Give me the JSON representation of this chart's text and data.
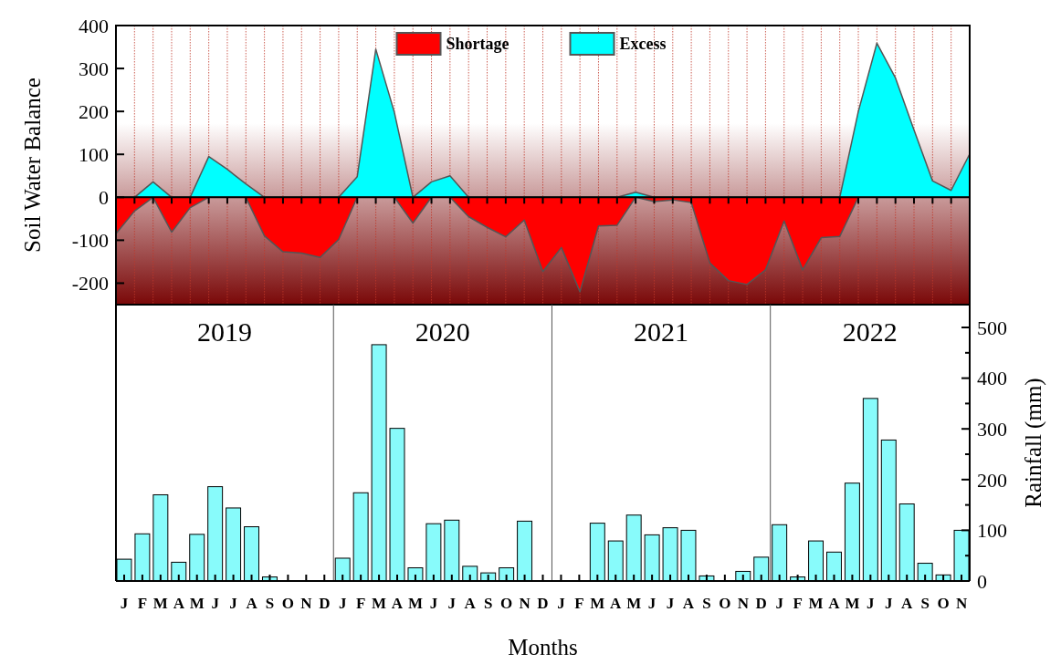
{
  "chart_data": [
    {
      "type": "area",
      "ylabel": "Soil Water Balance",
      "categories": [
        null,
        null,
        null,
        null,
        null,
        null,
        null,
        null,
        null,
        null,
        null,
        null,
        null,
        null,
        null,
        null,
        null,
        null,
        null,
        null,
        null,
        null,
        null,
        null,
        null,
        null,
        null,
        null,
        null,
        null,
        null,
        null,
        null,
        null,
        null,
        null,
        null,
        null,
        null,
        null,
        null,
        null,
        null,
        null,
        null,
        null,
        null
      ],
      "ylim": [
        -250,
        400
      ],
      "yticks": [
        -200,
        -100,
        0,
        100,
        200,
        300,
        400
      ],
      "tick_labels": "y",
      "grid": "x",
      "legend": "top",
      "series": [
        {
          "name": "Shortage",
          "color": "#ff0000",
          "values": [
            -85,
            -32,
            0,
            -81,
            -24,
            0,
            0,
            0,
            -90,
            -127,
            -130,
            -140,
            -98,
            0,
            0,
            0,
            -60,
            0,
            0,
            -45,
            -70,
            -92,
            -53,
            -173,
            -117,
            -220,
            -67,
            -65,
            0,
            -10,
            -6,
            -12,
            -153,
            -194,
            -203,
            -169,
            -55,
            -169,
            -94,
            -91,
            0,
            0,
            0,
            0,
            0,
            0,
            0
          ]
        },
        {
          "name": "Excess",
          "color": "#00ffff",
          "values": [
            0,
            0,
            36,
            0,
            0,
            95,
            65,
            31,
            0,
            0,
            0,
            0,
            0,
            48,
            345,
            198,
            0,
            36,
            50,
            0,
            0,
            0,
            0,
            0,
            0,
            0,
            0,
            0,
            12,
            0,
            0,
            0,
            0,
            0,
            0,
            0,
            0,
            0,
            0,
            0,
            200,
            359,
            278,
            157,
            38,
            16,
            101
          ]
        }
      ]
    },
    {
      "type": "bar",
      "xlabel": "Months",
      "y2label": "Rainfall (mm)",
      "categories": [
        "J",
        "F",
        "M",
        "A",
        "M",
        "J",
        "J",
        "A",
        "S",
        "O",
        "N",
        "D",
        "J",
        "F",
        "M",
        "A",
        "M",
        "J",
        "J",
        "A",
        "S",
        "O",
        "N",
        "D",
        "J",
        "F",
        "M",
        "A",
        "M",
        "J",
        "J",
        "A",
        "S",
        "O",
        "N",
        "D",
        "J",
        "F",
        "M",
        "A",
        "M",
        "J",
        "J",
        "A",
        "S",
        "O",
        "N"
      ],
      "y2lim": [
        0,
        545
      ],
      "y2ticks": [
        0,
        {
          "value": 50,
          "label": null
        },
        100,
        {
          "value": 150,
          "label": null
        },
        200,
        {
          "value": 250,
          "label": null
        },
        300,
        {
          "value": 350,
          "label": null
        },
        400,
        {
          "value": 450,
          "label": null
        },
        500
      ],
      "annotations": [
        "2019",
        "2020",
        "2021",
        "2022"
      ],
      "series": [
        {
          "color": "#88fbfb",
          "axis": "y2",
          "values": [
            43,
            93,
            170,
            37,
            92,
            186,
            144,
            107,
            8,
            0,
            0,
            0,
            45,
            174,
            466,
            301,
            26,
            113,
            120,
            29,
            16,
            26,
            118,
            0,
            0,
            0,
            114,
            79,
            130,
            91,
            105,
            100,
            10,
            0,
            19,
            47,
            111,
            8,
            79,
            57,
            193,
            360,
            278,
            152,
            35,
            12,
            100
          ]
        }
      ]
    }
  ]
}
